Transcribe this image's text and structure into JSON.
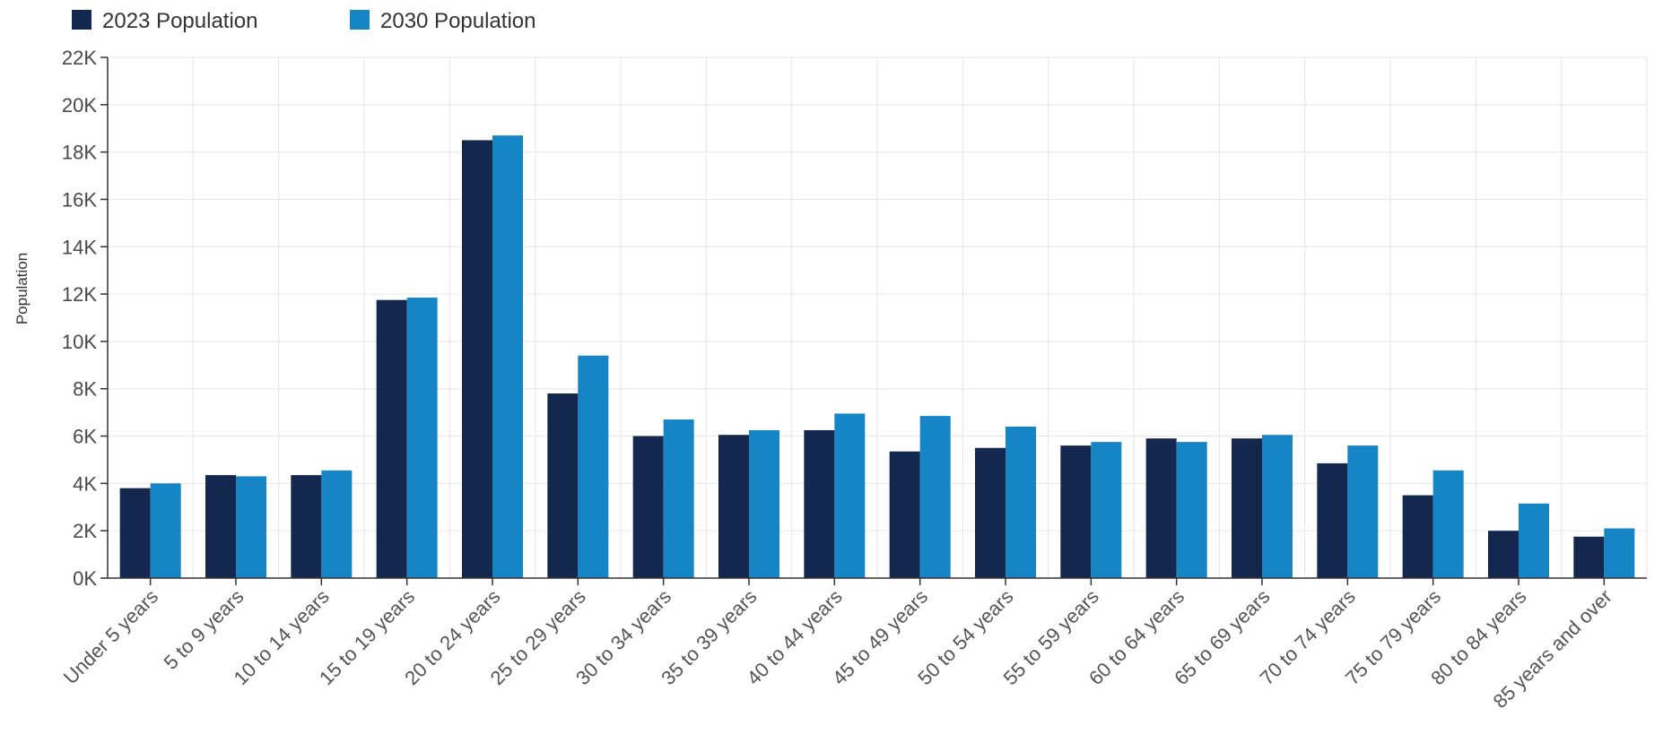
{
  "chart_data": {
    "type": "bar",
    "title": "",
    "xlabel": "",
    "ylabel": "Population",
    "ylim": [
      0,
      22000
    ],
    "yticks": [
      0,
      2000,
      4000,
      6000,
      8000,
      10000,
      12000,
      14000,
      16000,
      18000,
      20000,
      22000
    ],
    "ytick_labels": [
      "0K",
      "2K",
      "4K",
      "6K",
      "8K",
      "10K",
      "12K",
      "14K",
      "16K",
      "18K",
      "20K",
      "22K"
    ],
    "grid": true,
    "legend_position": "top-left",
    "categories": [
      "Under 5 years",
      "5 to 9 years",
      "10 to 14 years",
      "15 to 19 years",
      "20 to 24 years",
      "25 to 29 years",
      "30 to 34 years",
      "35 to 39 years",
      "40 to 44 years",
      "45 to 49 years",
      "50 to 54 years",
      "55 to 59 years",
      "60 to 64 years",
      "65 to 69 years",
      "70 to 74 years",
      "75 to 79 years",
      "80 to 84 years",
      "85 years and over"
    ],
    "series": [
      {
        "name": "2023 Population",
        "color": "#14284f",
        "values": [
          3800,
          4350,
          4350,
          11750,
          18500,
          7800,
          6000,
          6050,
          6250,
          5350,
          5500,
          5600,
          5900,
          5900,
          4850,
          3500,
          2000,
          1750
        ]
      },
      {
        "name": "2030 Population",
        "color": "#1585c6",
        "values": [
          4000,
          4300,
          4550,
          11850,
          18700,
          9400,
          6700,
          6250,
          6950,
          6850,
          6400,
          5750,
          5750,
          6050,
          5600,
          4550,
          3150,
          2100
        ]
      }
    ]
  }
}
